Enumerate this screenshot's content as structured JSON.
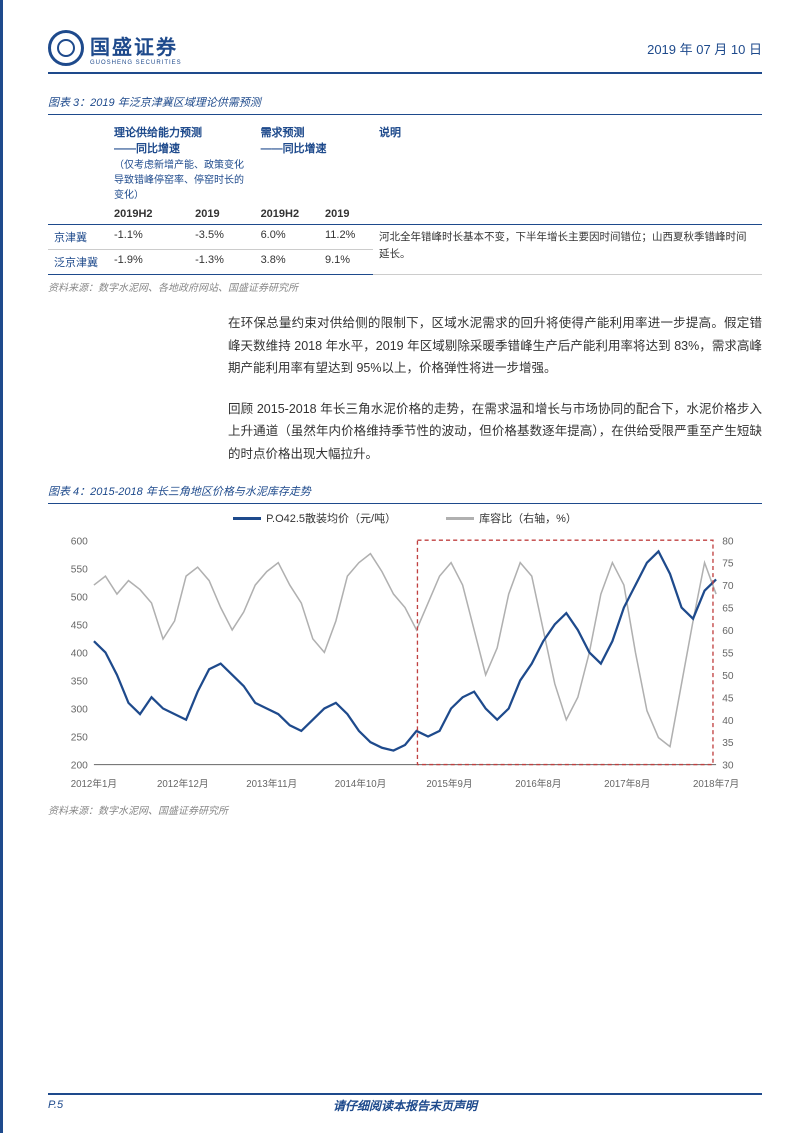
{
  "header": {
    "company_cn": "国盛证券",
    "company_en": "GUOSHENG SECURITIES",
    "date": "2019 年 07 月 10 日"
  },
  "fig3": {
    "title": "图表 3：2019 年泛京津冀区域理论供需预测",
    "head_supply": "理论供给能力预测",
    "head_supply_sub": "——同比增速",
    "head_supply_note": "（仅考虑新增产能、政策变化导致错峰停窑率、停窑时长的变化）",
    "head_demand": "需求预测",
    "head_demand_sub": "——同比增速",
    "head_desc": "说明",
    "cols": [
      "2019H2",
      "2019",
      "2019H2",
      "2019"
    ],
    "rows": [
      {
        "region": "京津冀",
        "v": [
          "-1.1%",
          "-3.5%",
          "6.0%",
          "11.2%"
        ],
        "desc": "河北全年错峰时长基本不变，下半年增长主要因时间错位；山西夏秋季错峰时间延长。"
      },
      {
        "region": "泛京津冀",
        "v": [
          "-1.9%",
          "-1.3%",
          "3.8%",
          "9.1%"
        ],
        "desc": ""
      }
    ],
    "src": "资料来源：数字水泥网、各地政府网站、国盛证券研究所"
  },
  "para1": "在环保总量约束对供给侧的限制下，区域水泥需求的回升将使得产能利用率进一步提高。假定错峰天数维持 2018 年水平，2019 年区域剔除采暖季错峰生产后产能利用率将达到 83%，需求高峰期产能利用率有望达到 95%以上，价格弹性将进一步增强。",
  "para2": "回顾 2015-2018 年长三角水泥价格的走势，在需求温和增长与市场协同的配合下，水泥价格步入上升通道（虽然年内价格维持季节性的波动，但价格基数逐年提高），在供给受限严重至产生短缺的时点价格出现大幅拉升。",
  "fig4": {
    "title": "图表 4：2015-2018 年长三角地区价格与水泥库存走势",
    "legend_price": "P.O42.5散装均价（元/吨）",
    "legend_stock": "库容比（右轴，%）",
    "colors": {
      "price": "#1e4a8c",
      "stock": "#b0b0b0",
      "grid": "#dcdcdc",
      "axis": "#666",
      "box": "#c04040"
    },
    "y_left": {
      "min": 200,
      "max": 600,
      "ticks": [
        200,
        250,
        300,
        350,
        400,
        450,
        500,
        550,
        600
      ]
    },
    "y_right": {
      "min": 30,
      "max": 80,
      "ticks": [
        30,
        35,
        40,
        45,
        50,
        55,
        60,
        65,
        70,
        75,
        80
      ]
    },
    "x_labels": [
      "2012年1月",
      "2012年12月",
      "2013年11月",
      "2014年10月",
      "2015年9月",
      "2016年8月",
      "2017年8月",
      "2018年7月"
    ],
    "price_series": [
      420,
      400,
      360,
      310,
      290,
      320,
      300,
      290,
      280,
      330,
      370,
      380,
      360,
      340,
      310,
      300,
      290,
      270,
      260,
      280,
      300,
      310,
      290,
      260,
      240,
      230,
      225,
      235,
      260,
      250,
      260,
      300,
      320,
      330,
      300,
      280,
      300,
      350,
      380,
      420,
      450,
      470,
      440,
      400,
      380,
      420,
      480,
      520,
      560,
      580,
      540,
      480,
      460,
      510,
      530
    ],
    "stock_series": [
      70,
      72,
      68,
      71,
      69,
      66,
      58,
      62,
      72,
      74,
      71,
      65,
      60,
      64,
      70,
      73,
      75,
      70,
      66,
      58,
      55,
      62,
      72,
      75,
      77,
      73,
      68,
      65,
      60,
      66,
      72,
      75,
      70,
      60,
      50,
      56,
      68,
      75,
      72,
      60,
      48,
      40,
      45,
      55,
      68,
      75,
      70,
      55,
      42,
      36,
      34,
      48,
      62,
      75,
      68
    ],
    "highlight": {
      "start": 0.52,
      "end": 0.995
    },
    "src": "资料来源：数字水泥网、国盛证券研究所"
  },
  "footer": {
    "page": "P.5",
    "disclaimer": "请仔细阅读本报告末页声明"
  }
}
